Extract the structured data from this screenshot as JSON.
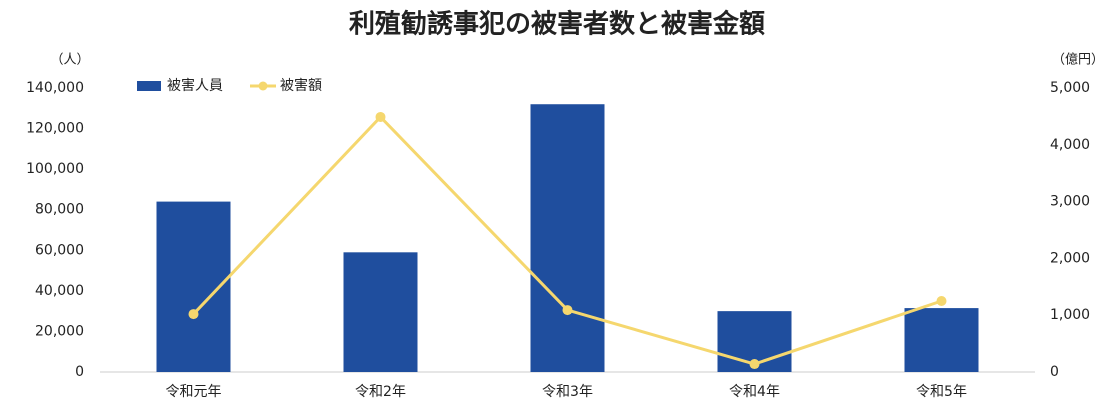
{
  "chart_data": {
    "type": "combo",
    "title": "利殖勧誘事犯の被害者数と被害金額",
    "y_label": "（人）",
    "y2_label": "（億円）",
    "categories": [
      "令和元年",
      "令和2年",
      "令和3年",
      "令和4年",
      "令和5年"
    ],
    "series": [
      {
        "name": "被害人員",
        "type": "bar",
        "color": "#1f4e9e",
        "values": [
          84000,
          59000,
          132000,
          30000,
          31500
        ]
      },
      {
        "name": "被害額",
        "type": "line",
        "axis": "y2",
        "color": "#f5d76e",
        "values": [
          1020,
          4490,
          1090,
          140,
          1250
        ]
      }
    ],
    "ylim": [
      0,
      140000
    ],
    "yticks": [
      0,
      {
        "value": 20000,
        "label": "20,000"
      },
      {
        "value": 40000,
        "label": "40,000"
      },
      {
        "value": 60000,
        "label": "60,000"
      },
      {
        "value": 80000,
        "label": "80,000"
      },
      {
        "value": 100000,
        "label": "100,000"
      },
      {
        "value": 120000,
        "label": "120,000"
      },
      {
        "value": 140000,
        "label": "140,000"
      }
    ],
    "y2lim": [
      0,
      5000
    ],
    "y2ticks": [
      0,
      {
        "value": 1000,
        "label": "1,000"
      },
      {
        "value": 2000,
        "label": "2,000"
      },
      {
        "value": 3000,
        "label": "3,000"
      },
      {
        "value": 4000,
        "label": "4,000"
      },
      {
        "value": 5000,
        "label": "5,000"
      }
    ],
    "grid": false,
    "legend": "top-left"
  }
}
